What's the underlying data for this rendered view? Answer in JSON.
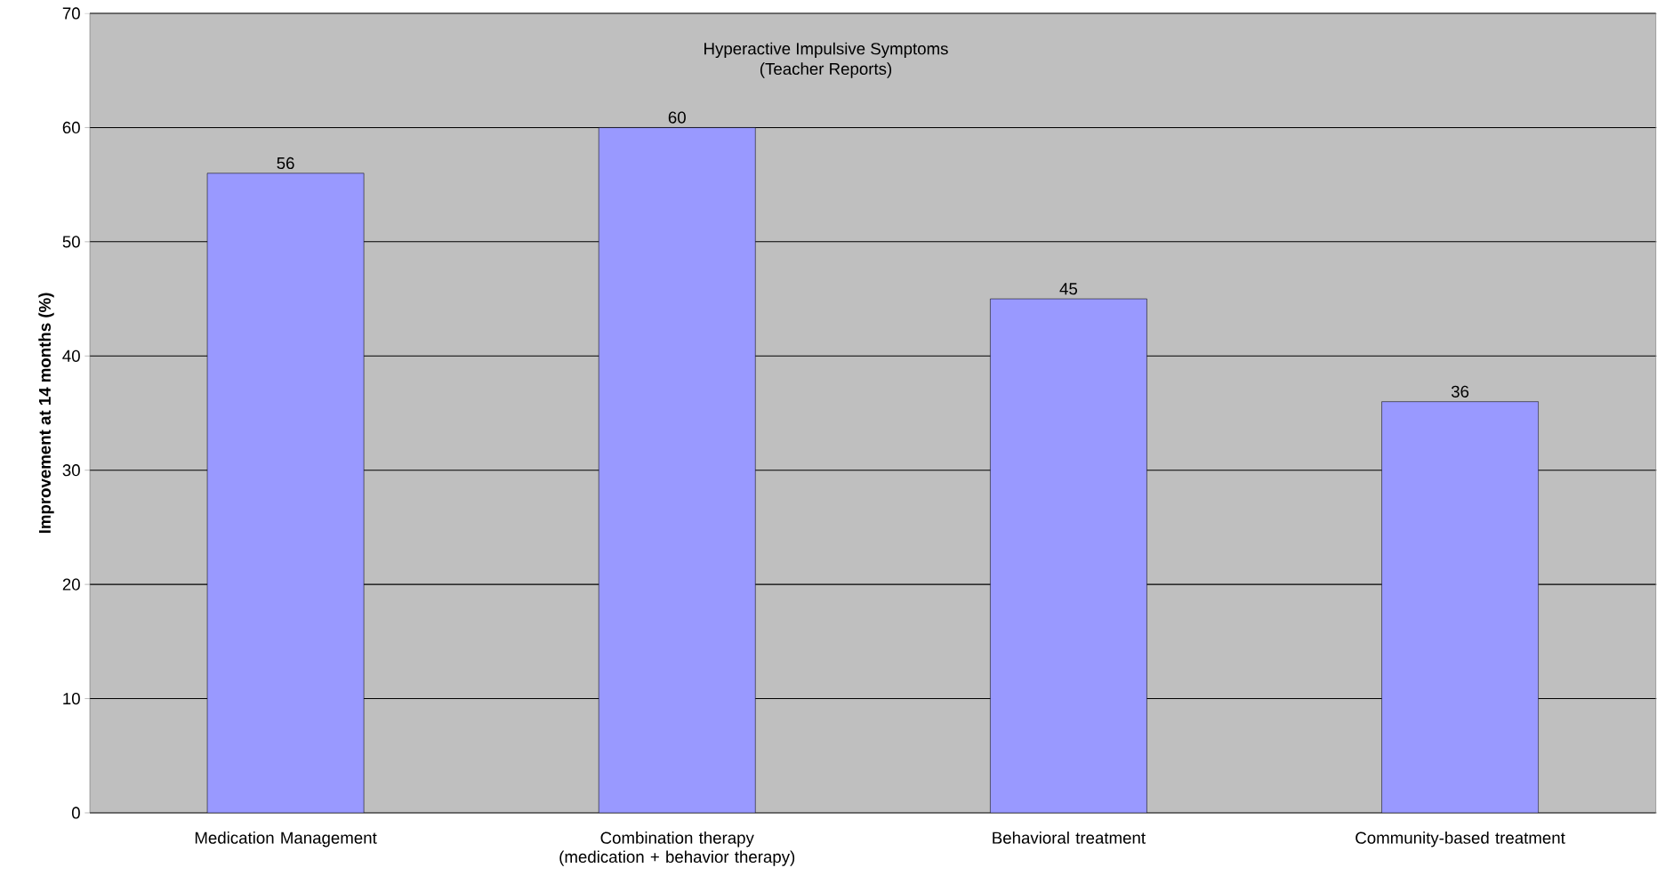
{
  "chart_data": {
    "type": "bar",
    "title": "Hyperactive Impulsive Symptoms",
    "subtitle": "(Teacher Reports)",
    "ylabel": "Improvement at 14 months (%)",
    "categories": [
      "Medication Management",
      "Combination therapy (medication + behavior therapy)",
      "Behavioral treatment",
      "Community-based treatment"
    ],
    "values": [
      56,
      60,
      45,
      36
    ],
    "color": "#9999ff",
    "ylim": [
      0,
      70
    ],
    "yticks": [
      0,
      10,
      20,
      30,
      40,
      50,
      60,
      70
    ],
    "grid": "y",
    "data_labels": true
  }
}
